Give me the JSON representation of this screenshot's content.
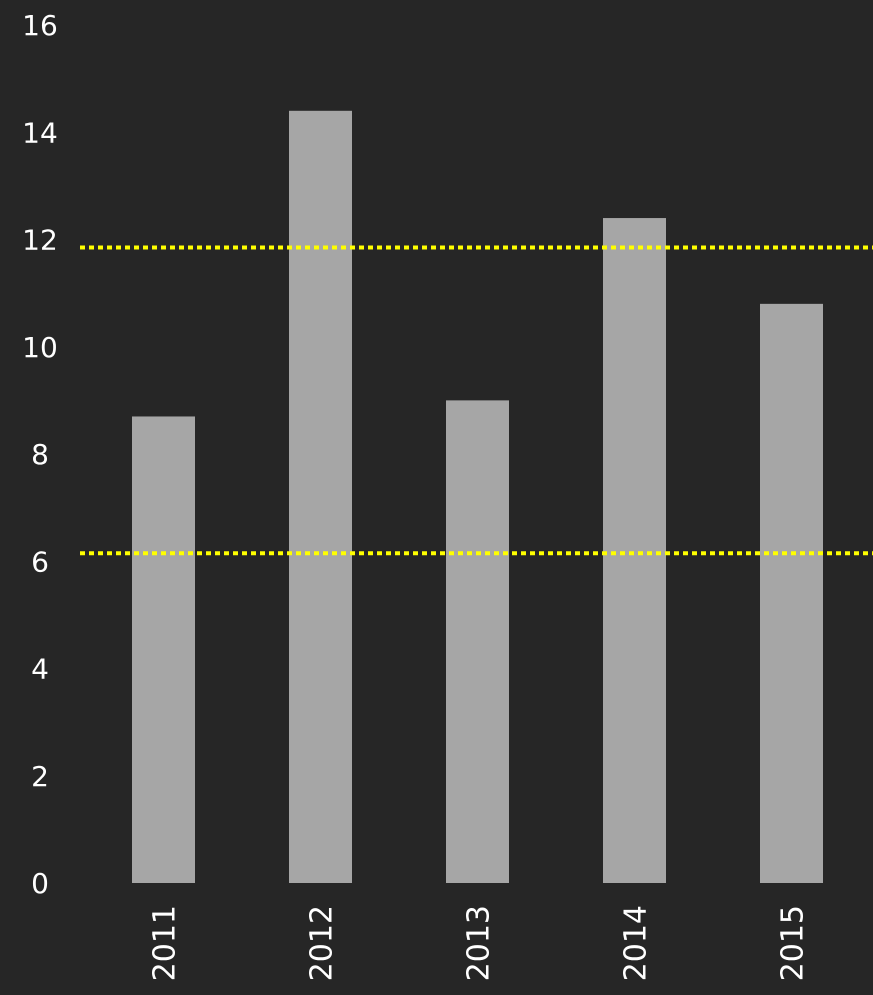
{
  "chart_data": {
    "type": "bar",
    "title": "",
    "xlabel": "",
    "ylabel": "",
    "categories": [
      "2011",
      "2012",
      "2013",
      "2014",
      "2015"
    ],
    "series": [
      {
        "values": [
          8.7,
          14.4,
          9.0,
          12.4,
          10.8
        ]
      }
    ],
    "ylim": [
      0,
      16
    ],
    "yticks": [
      "0",
      "2",
      "4",
      "6",
      "8",
      "10",
      "12",
      "14",
      "16"
    ],
    "grid": false,
    "legend": "none",
    "reference_lines": [
      {
        "value": 11.85,
        "color": "#ffff00",
        "style": "dotted"
      },
      {
        "value": 6.15,
        "color": "#ffff00",
        "style": "dotted"
      }
    ],
    "colors": {
      "background": "#262626",
      "bar": "#a6a6a6",
      "text": "#ffffff",
      "reference": "#ffff00"
    }
  }
}
